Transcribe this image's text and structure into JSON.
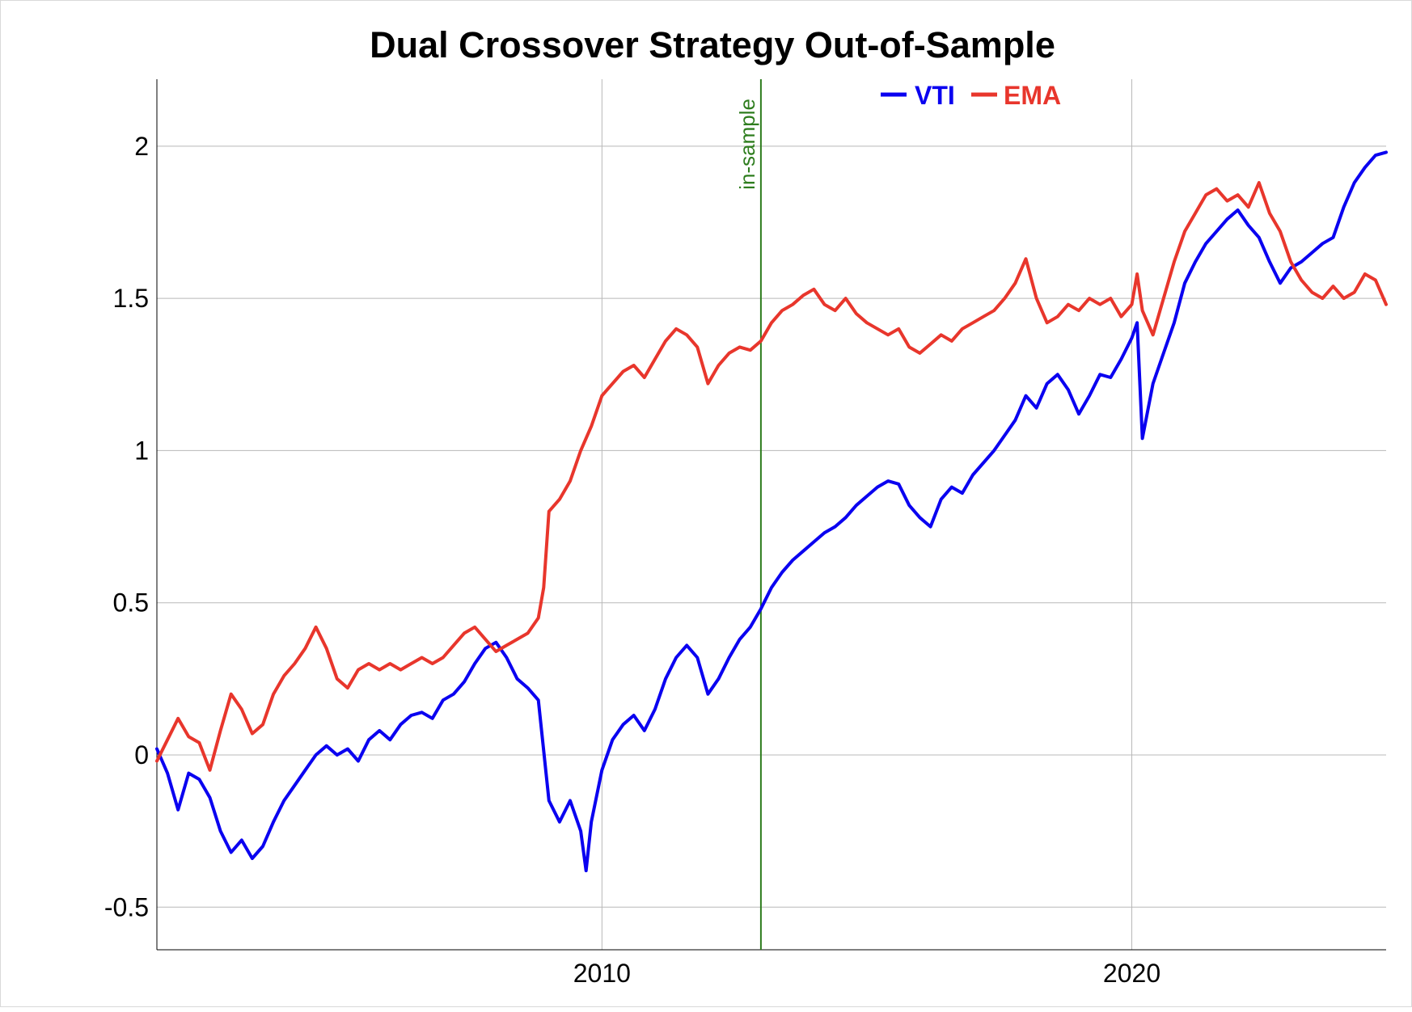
{
  "chart_data": {
    "type": "line",
    "title": "Dual Crossover Strategy Out-of-Sample",
    "xlabel": "",
    "ylabel": "",
    "xlim": [
      2001.6,
      2024.8
    ],
    "ylim": [
      -0.64,
      2.22
    ],
    "x_ticks": [
      {
        "value": 2010,
        "label": "2010"
      },
      {
        "value": 2020,
        "label": "2020"
      }
    ],
    "y_ticks": [
      {
        "value": -0.5,
        "label": "-0.5"
      },
      {
        "value": 0,
        "label": "0"
      },
      {
        "value": 0.5,
        "label": "0.5"
      },
      {
        "value": 1,
        "label": "1"
      },
      {
        "value": 1.5,
        "label": "1.5"
      },
      {
        "value": 2,
        "label": "2"
      }
    ],
    "grid": true,
    "legend_position": "top-right",
    "annotation": {
      "x": 2013.0,
      "label": "in-sample",
      "color": "#2e7d1e"
    },
    "series": [
      {
        "name": "VTI",
        "color": "#0a00f0",
        "points": [
          [
            2001.6,
            0.02
          ],
          [
            2001.8,
            -0.06
          ],
          [
            2002.0,
            -0.18
          ],
          [
            2002.2,
            -0.06
          ],
          [
            2002.4,
            -0.08
          ],
          [
            2002.6,
            -0.14
          ],
          [
            2002.8,
            -0.25
          ],
          [
            2003.0,
            -0.32
          ],
          [
            2003.2,
            -0.28
          ],
          [
            2003.4,
            -0.34
          ],
          [
            2003.6,
            -0.3
          ],
          [
            2003.8,
            -0.22
          ],
          [
            2004.0,
            -0.15
          ],
          [
            2004.2,
            -0.1
          ],
          [
            2004.4,
            -0.05
          ],
          [
            2004.6,
            0.0
          ],
          [
            2004.8,
            0.03
          ],
          [
            2005.0,
            0.0
          ],
          [
            2005.2,
            0.02
          ],
          [
            2005.4,
            -0.02
          ],
          [
            2005.6,
            0.05
          ],
          [
            2005.8,
            0.08
          ],
          [
            2006.0,
            0.05
          ],
          [
            2006.2,
            0.1
          ],
          [
            2006.4,
            0.13
          ],
          [
            2006.6,
            0.14
          ],
          [
            2006.8,
            0.12
          ],
          [
            2007.0,
            0.18
          ],
          [
            2007.2,
            0.2
          ],
          [
            2007.4,
            0.24
          ],
          [
            2007.6,
            0.3
          ],
          [
            2007.8,
            0.35
          ],
          [
            2008.0,
            0.37
          ],
          [
            2008.2,
            0.32
          ],
          [
            2008.4,
            0.25
          ],
          [
            2008.6,
            0.22
          ],
          [
            2008.8,
            0.18
          ],
          [
            2009.0,
            -0.15
          ],
          [
            2009.2,
            -0.22
          ],
          [
            2009.4,
            -0.15
          ],
          [
            2009.6,
            -0.25
          ],
          [
            2009.7,
            -0.38
          ],
          [
            2009.8,
            -0.22
          ],
          [
            2010.0,
            -0.05
          ],
          [
            2010.2,
            0.05
          ],
          [
            2010.4,
            0.1
          ],
          [
            2010.6,
            0.13
          ],
          [
            2010.8,
            0.08
          ],
          [
            2011.0,
            0.15
          ],
          [
            2011.2,
            0.25
          ],
          [
            2011.4,
            0.32
          ],
          [
            2011.6,
            0.36
          ],
          [
            2011.8,
            0.32
          ],
          [
            2012.0,
            0.2
          ],
          [
            2012.2,
            0.25
          ],
          [
            2012.4,
            0.32
          ],
          [
            2012.6,
            0.38
          ],
          [
            2012.8,
            0.42
          ],
          [
            2013.0,
            0.48
          ],
          [
            2013.2,
            0.55
          ],
          [
            2013.4,
            0.6
          ],
          [
            2013.6,
            0.64
          ],
          [
            2013.8,
            0.67
          ],
          [
            2014.0,
            0.7
          ],
          [
            2014.2,
            0.73
          ],
          [
            2014.4,
            0.75
          ],
          [
            2014.6,
            0.78
          ],
          [
            2014.8,
            0.82
          ],
          [
            2015.0,
            0.85
          ],
          [
            2015.2,
            0.88
          ],
          [
            2015.4,
            0.9
          ],
          [
            2015.6,
            0.89
          ],
          [
            2015.8,
            0.82
          ],
          [
            2016.0,
            0.78
          ],
          [
            2016.2,
            0.75
          ],
          [
            2016.4,
            0.84
          ],
          [
            2016.6,
            0.88
          ],
          [
            2016.8,
            0.86
          ],
          [
            2017.0,
            0.92
          ],
          [
            2017.2,
            0.96
          ],
          [
            2017.4,
            1.0
          ],
          [
            2017.6,
            1.05
          ],
          [
            2017.8,
            1.1
          ],
          [
            2018.0,
            1.18
          ],
          [
            2018.2,
            1.14
          ],
          [
            2018.4,
            1.22
          ],
          [
            2018.6,
            1.25
          ],
          [
            2018.8,
            1.2
          ],
          [
            2019.0,
            1.12
          ],
          [
            2019.2,
            1.18
          ],
          [
            2019.4,
            1.25
          ],
          [
            2019.6,
            1.24
          ],
          [
            2019.8,
            1.3
          ],
          [
            2020.0,
            1.37
          ],
          [
            2020.1,
            1.42
          ],
          [
            2020.2,
            1.04
          ],
          [
            2020.4,
            1.22
          ],
          [
            2020.6,
            1.32
          ],
          [
            2020.8,
            1.42
          ],
          [
            2021.0,
            1.55
          ],
          [
            2021.2,
            1.62
          ],
          [
            2021.4,
            1.68
          ],
          [
            2021.6,
            1.72
          ],
          [
            2021.8,
            1.76
          ],
          [
            2022.0,
            1.79
          ],
          [
            2022.2,
            1.74
          ],
          [
            2022.4,
            1.7
          ],
          [
            2022.6,
            1.62
          ],
          [
            2022.8,
            1.55
          ],
          [
            2023.0,
            1.6
          ],
          [
            2023.2,
            1.62
          ],
          [
            2023.4,
            1.65
          ],
          [
            2023.6,
            1.68
          ],
          [
            2023.8,
            1.7
          ],
          [
            2024.0,
            1.8
          ],
          [
            2024.2,
            1.88
          ],
          [
            2024.4,
            1.93
          ],
          [
            2024.6,
            1.97
          ],
          [
            2024.8,
            1.98
          ]
        ]
      },
      {
        "name": "EMA",
        "color": "#e8362c",
        "points": [
          [
            2001.6,
            -0.02
          ],
          [
            2001.8,
            0.05
          ],
          [
            2002.0,
            0.12
          ],
          [
            2002.2,
            0.06
          ],
          [
            2002.4,
            0.04
          ],
          [
            2002.6,
            -0.05
          ],
          [
            2002.8,
            0.08
          ],
          [
            2003.0,
            0.2
          ],
          [
            2003.2,
            0.15
          ],
          [
            2003.4,
            0.07
          ],
          [
            2003.6,
            0.1
          ],
          [
            2003.8,
            0.2
          ],
          [
            2004.0,
            0.26
          ],
          [
            2004.2,
            0.3
          ],
          [
            2004.4,
            0.35
          ],
          [
            2004.6,
            0.42
          ],
          [
            2004.8,
            0.35
          ],
          [
            2005.0,
            0.25
          ],
          [
            2005.2,
            0.22
          ],
          [
            2005.4,
            0.28
          ],
          [
            2005.6,
            0.3
          ],
          [
            2005.8,
            0.28
          ],
          [
            2006.0,
            0.3
          ],
          [
            2006.2,
            0.28
          ],
          [
            2006.4,
            0.3
          ],
          [
            2006.6,
            0.32
          ],
          [
            2006.8,
            0.3
          ],
          [
            2007.0,
            0.32
          ],
          [
            2007.2,
            0.36
          ],
          [
            2007.4,
            0.4
          ],
          [
            2007.6,
            0.42
          ],
          [
            2007.8,
            0.38
          ],
          [
            2008.0,
            0.34
          ],
          [
            2008.2,
            0.36
          ],
          [
            2008.4,
            0.38
          ],
          [
            2008.6,
            0.4
          ],
          [
            2008.8,
            0.45
          ],
          [
            2008.9,
            0.55
          ],
          [
            2009.0,
            0.8
          ],
          [
            2009.2,
            0.84
          ],
          [
            2009.4,
            0.9
          ],
          [
            2009.6,
            1.0
          ],
          [
            2009.8,
            1.08
          ],
          [
            2010.0,
            1.18
          ],
          [
            2010.2,
            1.22
          ],
          [
            2010.4,
            1.26
          ],
          [
            2010.6,
            1.28
          ],
          [
            2010.8,
            1.24
          ],
          [
            2011.0,
            1.3
          ],
          [
            2011.2,
            1.36
          ],
          [
            2011.4,
            1.4
          ],
          [
            2011.6,
            1.38
          ],
          [
            2011.8,
            1.34
          ],
          [
            2012.0,
            1.22
          ],
          [
            2012.2,
            1.28
          ],
          [
            2012.4,
            1.32
          ],
          [
            2012.6,
            1.34
          ],
          [
            2012.8,
            1.33
          ],
          [
            2013.0,
            1.36
          ],
          [
            2013.2,
            1.42
          ],
          [
            2013.4,
            1.46
          ],
          [
            2013.6,
            1.48
          ],
          [
            2013.8,
            1.51
          ],
          [
            2014.0,
            1.53
          ],
          [
            2014.2,
            1.48
          ],
          [
            2014.4,
            1.46
          ],
          [
            2014.6,
            1.5
          ],
          [
            2014.8,
            1.45
          ],
          [
            2015.0,
            1.42
          ],
          [
            2015.2,
            1.4
          ],
          [
            2015.4,
            1.38
          ],
          [
            2015.6,
            1.4
          ],
          [
            2015.8,
            1.34
          ],
          [
            2016.0,
            1.32
          ],
          [
            2016.2,
            1.35
          ],
          [
            2016.4,
            1.38
          ],
          [
            2016.6,
            1.36
          ],
          [
            2016.8,
            1.4
          ],
          [
            2017.0,
            1.42
          ],
          [
            2017.2,
            1.44
          ],
          [
            2017.4,
            1.46
          ],
          [
            2017.6,
            1.5
          ],
          [
            2017.8,
            1.55
          ],
          [
            2018.0,
            1.63
          ],
          [
            2018.2,
            1.5
          ],
          [
            2018.4,
            1.42
          ],
          [
            2018.6,
            1.44
          ],
          [
            2018.8,
            1.48
          ],
          [
            2019.0,
            1.46
          ],
          [
            2019.2,
            1.5
          ],
          [
            2019.4,
            1.48
          ],
          [
            2019.6,
            1.5
          ],
          [
            2019.8,
            1.44
          ],
          [
            2020.0,
            1.48
          ],
          [
            2020.1,
            1.58
          ],
          [
            2020.2,
            1.46
          ],
          [
            2020.4,
            1.38
          ],
          [
            2020.6,
            1.5
          ],
          [
            2020.8,
            1.62
          ],
          [
            2021.0,
            1.72
          ],
          [
            2021.2,
            1.78
          ],
          [
            2021.4,
            1.84
          ],
          [
            2021.6,
            1.86
          ],
          [
            2021.8,
            1.82
          ],
          [
            2022.0,
            1.84
          ],
          [
            2022.2,
            1.8
          ],
          [
            2022.4,
            1.88
          ],
          [
            2022.6,
            1.78
          ],
          [
            2022.8,
            1.72
          ],
          [
            2023.0,
            1.62
          ],
          [
            2023.2,
            1.56
          ],
          [
            2023.4,
            1.52
          ],
          [
            2023.6,
            1.5
          ],
          [
            2023.8,
            1.54
          ],
          [
            2024.0,
            1.5
          ],
          [
            2024.2,
            1.52
          ],
          [
            2024.4,
            1.58
          ],
          [
            2024.6,
            1.56
          ],
          [
            2024.8,
            1.48
          ]
        ]
      }
    ]
  }
}
